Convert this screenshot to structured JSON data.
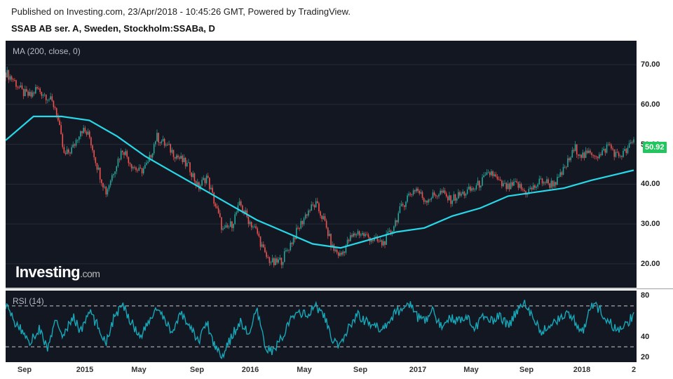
{
  "header": {
    "published": "Published on Investing.com, 23/Apr/2018 - 10:45:26 GMT, Powered by TradingView.",
    "symbol": "SSAB AB ser. A, Sweden, Stockholm:SSABa, D"
  },
  "logo": {
    "brand": "Investing",
    "suffix": ".com"
  },
  "colors": {
    "background": "#131722",
    "ma_line": "#26d8e8",
    "rsi_line": "#16a7b8",
    "up": "#26a69a",
    "down": "#ef5350",
    "badge": "#22c55e"
  },
  "chart_data": [
    {
      "type": "line",
      "pane": "price",
      "indicator_label": "MA (200, close, 0)",
      "last_price_label": "50.92",
      "x_ticks": [
        "Sep",
        "2015",
        "May",
        "Sep",
        "2016",
        "May",
        "Sep",
        "2017",
        "May",
        "Sep",
        "2018",
        "2"
      ],
      "y_ticks": [
        "70.00",
        "60.00",
        "50.00",
        "40.00",
        "30.00",
        "20.00"
      ],
      "ylim": [
        14,
        76
      ],
      "price_series": {
        "x": [
          0,
          3,
          6,
          9,
          11,
          15,
          18,
          21,
          24,
          27,
          30,
          33,
          36,
          39,
          42,
          45,
          48,
          51,
          54,
          57,
          60,
          63,
          66,
          69,
          72,
          75,
          78,
          81,
          84,
          87,
          90,
          93,
          96,
          99,
          102,
          105,
          108,
          111,
          114,
          117,
          120,
          123,
          126,
          129,
          132,
          135,
          138,
          141,
          144,
          147,
          150,
          153,
          156,
          159,
          162,
          165,
          168,
          171,
          174,
          177,
          180,
          183,
          186,
          189,
          192,
          195,
          198,
          201,
          204,
          207,
          210,
          213,
          216,
          219,
          222,
          225
        ],
        "y": [
          68,
          66,
          63,
          62,
          64,
          62,
          59,
          47,
          49,
          54,
          52,
          44,
          38,
          44,
          49,
          45,
          43,
          45,
          52,
          50,
          48,
          46,
          44,
          39,
          42,
          35,
          28,
          30,
          35,
          31,
          28,
          22,
          20,
          21,
          25,
          29,
          33,
          35,
          31,
          24,
          22,
          26,
          28,
          27,
          26,
          25,
          28,
          33,
          37,
          39,
          36,
          37,
          38,
          36,
          37,
          38,
          39,
          41,
          43,
          40,
          39,
          40,
          38,
          39,
          41,
          40,
          41,
          45,
          49,
          47,
          48,
          47,
          50,
          47,
          48,
          50.92
        ]
      },
      "series": [
        {
          "name": "MA (200, close, 0)",
          "x": [
            0,
            10,
            20,
            30,
            40,
            50,
            60,
            70,
            80,
            90,
            100,
            110,
            120,
            130,
            140,
            150,
            160,
            170,
            180,
            190,
            200,
            210,
            225
          ],
          "y": [
            51,
            57,
            57,
            56,
            52,
            47,
            43,
            39,
            35,
            31,
            28,
            25,
            24,
            26,
            28,
            29,
            32,
            34,
            37,
            38,
            39,
            41,
            43.5
          ]
        }
      ]
    },
    {
      "type": "line",
      "pane": "rsi",
      "indicator_label": "RSI (14)",
      "y_ticks": [
        "80",
        "40",
        "20"
      ],
      "ylim": [
        15,
        85
      ],
      "reference_lines": [
        70,
        30
      ],
      "series": [
        {
          "name": "RSI (14)",
          "x": [
            0,
            3,
            6,
            9,
            12,
            15,
            18,
            21,
            24,
            27,
            30,
            33,
            36,
            39,
            42,
            45,
            48,
            51,
            54,
            57,
            60,
            63,
            66,
            69,
            72,
            75,
            78,
            81,
            84,
            87,
            90,
            93,
            96,
            99,
            102,
            105,
            108,
            111,
            114,
            117,
            120,
            123,
            126,
            129,
            132,
            135,
            138,
            141,
            144,
            147,
            150,
            153,
            156,
            159,
            162,
            165,
            168,
            171,
            174,
            177,
            180,
            183,
            186,
            189,
            192,
            195,
            198,
            201,
            204,
            207,
            210,
            213,
            216,
            219,
            222,
            225
          ],
          "y": [
            72,
            55,
            45,
            35,
            48,
            28,
            55,
            40,
            60,
            45,
            65,
            50,
            35,
            60,
            70,
            55,
            40,
            52,
            68,
            55,
            45,
            62,
            50,
            35,
            55,
            30,
            22,
            40,
            55,
            42,
            65,
            30,
            25,
            40,
            55,
            65,
            60,
            70,
            62,
            35,
            30,
            50,
            62,
            55,
            50,
            48,
            58,
            66,
            75,
            60,
            55,
            65,
            50,
            60,
            55,
            62,
            48,
            58,
            55,
            60,
            50,
            65,
            75,
            55,
            45,
            50,
            58,
            62,
            55,
            45,
            72,
            65,
            55,
            45,
            50,
            62
          ]
        }
      ]
    }
  ]
}
